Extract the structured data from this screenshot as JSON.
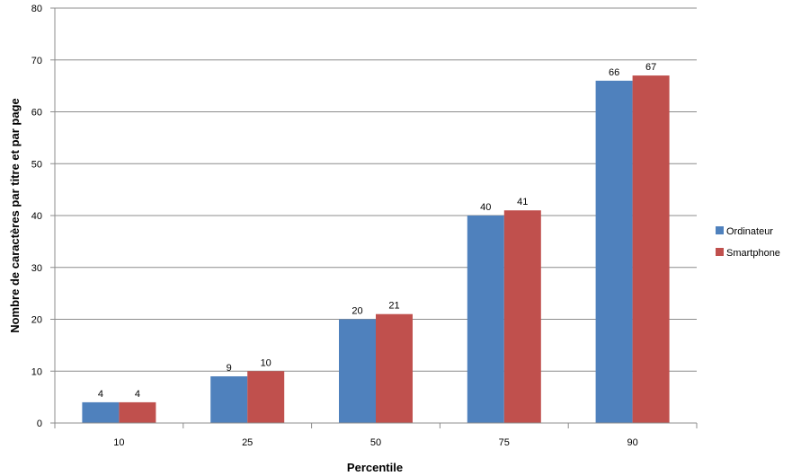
{
  "chart_data": {
    "type": "bar",
    "categories": [
      "10",
      "25",
      "50",
      "75",
      "90"
    ],
    "series": [
      {
        "name": "Ordinateur",
        "values": [
          4,
          9,
          20,
          40,
          66
        ],
        "color": "#4F81BD"
      },
      {
        "name": "Smartphone",
        "values": [
          4,
          10,
          21,
          41,
          67
        ],
        "color": "#C0504D"
      }
    ],
    "xlabel": "Percentile",
    "ylabel": "Nombre de caractères par titre et par page",
    "ylim": [
      0,
      80
    ],
    "yticks": [
      0,
      10,
      20,
      30,
      40,
      50,
      60,
      70,
      80
    ],
    "grid": true,
    "legend_position": "right",
    "data_labels": true
  }
}
